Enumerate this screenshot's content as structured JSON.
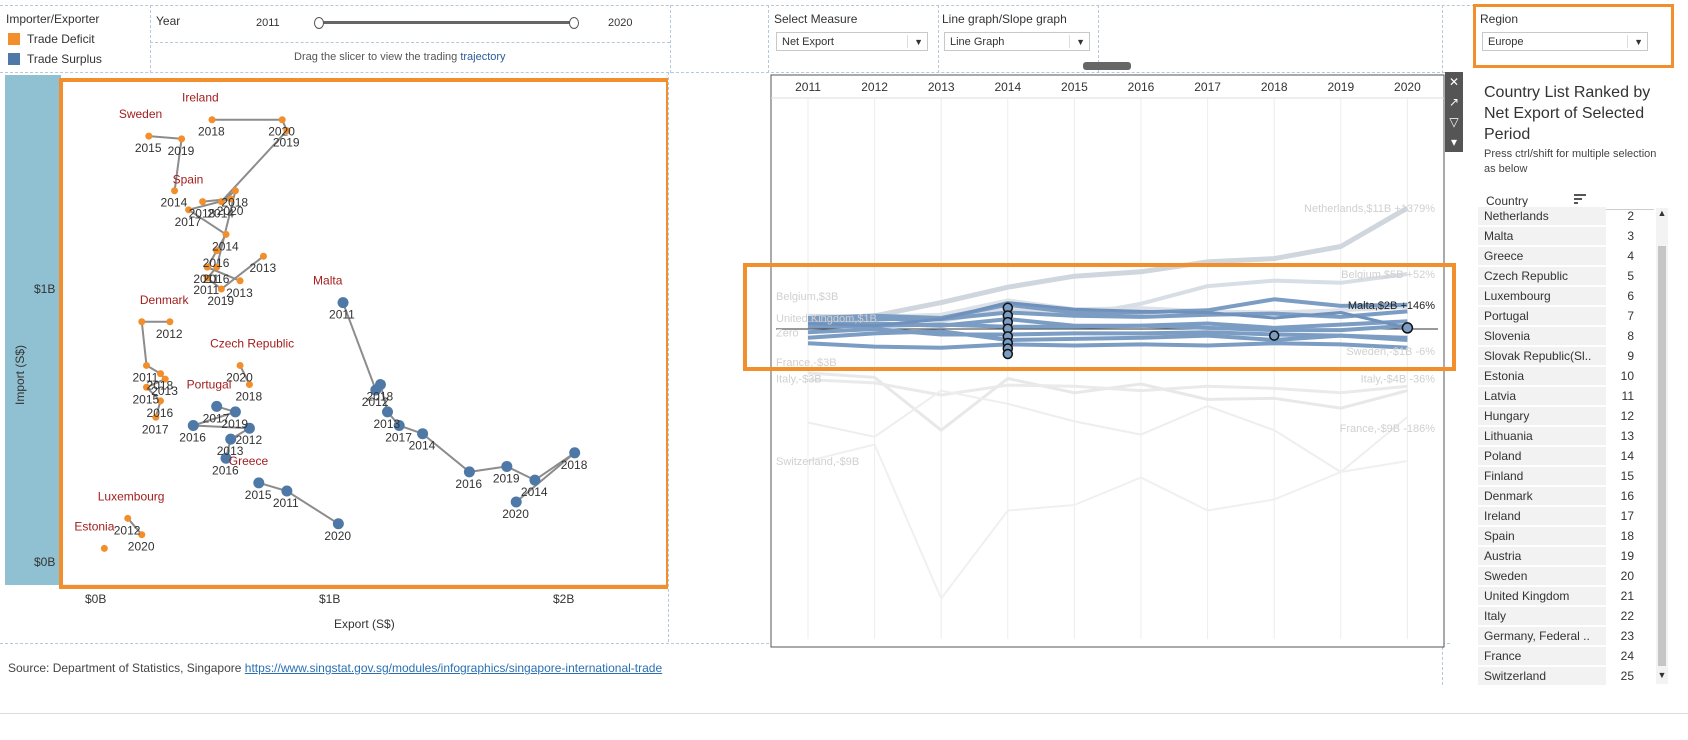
{
  "legend": {
    "title": "Importer/Exporter",
    "items": [
      {
        "label": "Trade Deficit",
        "color": "#f28e2b"
      },
      {
        "label": "Trade Surplus",
        "color": "#4e79a7"
      }
    ]
  },
  "year_filter": {
    "label": "Year",
    "min": "2011",
    "max": "2020",
    "start": 2011,
    "end": 2020,
    "hint_prefix": "Drag the slicer to view the trading ",
    "hint_link": "trajectory"
  },
  "measure": {
    "label": "Select Measure",
    "value": "Net Export"
  },
  "graph_type": {
    "label": "Line graph/Slope graph",
    "value": "Line Graph"
  },
  "region": {
    "label": "Region",
    "value": "Europe"
  },
  "scatter": {
    "y_title": "Import (S$)",
    "x_title": "Export (S$)",
    "y_ticks": [
      {
        "v": 0,
        "label": "$0B"
      },
      {
        "v": 1,
        "label": "$1B"
      }
    ],
    "x_ticks": [
      {
        "v": 0,
        "label": "$0B"
      },
      {
        "v": 1,
        "label": "$1B"
      },
      {
        "v": 2,
        "label": "$2B"
      }
    ],
    "countries": [
      {
        "name": "Ireland",
        "color": "#f28e2b",
        "points": [
          [
            0.5,
            1.62,
            "2018"
          ],
          [
            0.8,
            1.62,
            "2020"
          ],
          [
            0.82,
            1.58,
            "2019"
          ],
          [
            0.54,
            1.32,
            "2014"
          ],
          [
            0.6,
            1.36,
            "2018"
          ],
          [
            0.52,
            1.08,
            "2016"
          ],
          [
            0.48,
            1.04,
            "2011"
          ],
          [
            0.54,
            1.0,
            "2019"
          ],
          [
            0.72,
            1.12,
            "2013"
          ]
        ]
      },
      {
        "name": "Sweden",
        "color": "#f28e2b",
        "points": [
          [
            0.23,
            1.56,
            "2015"
          ],
          [
            0.37,
            1.55,
            "2019"
          ],
          [
            0.34,
            1.36,
            "2014"
          ]
        ]
      },
      {
        "name": "Spain",
        "color": "#f28e2b",
        "points": [
          [
            0.46,
            1.32,
            "2018"
          ],
          [
            0.58,
            1.33,
            "2020"
          ],
          [
            0.4,
            1.29,
            "2017"
          ],
          [
            0.56,
            1.2,
            "2014"
          ],
          [
            0.52,
            1.14,
            "2016"
          ],
          [
            0.48,
            1.08,
            "2011"
          ],
          [
            0.62,
            1.03,
            "2013"
          ]
        ]
      },
      {
        "name": "Denmark",
        "color": "#f28e2b",
        "points": [
          [
            0.32,
            0.88,
            "2012"
          ],
          [
            0.2,
            0.88,
            ""
          ],
          [
            0.22,
            0.72,
            "2011"
          ],
          [
            0.28,
            0.69,
            "2018"
          ],
          [
            0.3,
            0.67,
            "2013"
          ],
          [
            0.22,
            0.64,
            "2015"
          ],
          [
            0.28,
            0.59,
            "2016"
          ],
          [
            0.26,
            0.53,
            "2017"
          ]
        ]
      },
      {
        "name": "Czech Republic",
        "color": "#f28e2b",
        "points": [
          [
            0.62,
            0.72,
            "2020"
          ],
          [
            0.66,
            0.65,
            "2018"
          ]
        ]
      },
      {
        "name": "Portugal",
        "color": "#4e79a7",
        "points": [
          [
            0.52,
            0.57,
            "2017"
          ],
          [
            0.6,
            0.55,
            "2019"
          ],
          [
            0.42,
            0.5,
            "2016"
          ],
          [
            0.66,
            0.49,
            "2012"
          ],
          [
            0.58,
            0.45,
            "2013"
          ],
          [
            0.56,
            0.38,
            "2016"
          ]
        ]
      },
      {
        "name": "Luxembourg",
        "color": "#f28e2b",
        "points": [
          [
            0.14,
            0.16,
            "2012"
          ],
          [
            0.2,
            0.1,
            "2020"
          ]
        ]
      },
      {
        "name": "Estonia",
        "color": "#f28e2b",
        "points": [
          [
            0.04,
            0.05,
            ""
          ]
        ]
      },
      {
        "name": "Greece",
        "color": "#4e79a7",
        "points": [
          [
            0.7,
            0.29,
            "2015"
          ],
          [
            0.82,
            0.26,
            "2011"
          ],
          [
            1.04,
            0.14,
            "2020"
          ]
        ]
      },
      {
        "name": "Malta",
        "color": "#4e79a7",
        "points": [
          [
            1.06,
            0.95,
            "2011"
          ],
          [
            1.2,
            0.63,
            "2012"
          ],
          [
            1.22,
            0.65,
            "2018"
          ],
          [
            1.25,
            0.55,
            "2013"
          ],
          [
            1.3,
            0.5,
            "2017"
          ],
          [
            1.4,
            0.47,
            "2014"
          ],
          [
            1.6,
            0.33,
            "2016"
          ],
          [
            1.76,
            0.35,
            "2019"
          ],
          [
            1.88,
            0.3,
            "2014"
          ],
          [
            2.05,
            0.4,
            "2018"
          ],
          [
            1.8,
            0.22,
            "2020"
          ]
        ]
      }
    ]
  },
  "line_chart": {
    "years": [
      "2011",
      "2012",
      "2013",
      "2014",
      "2015",
      "2016",
      "2017",
      "2018",
      "2019",
      "2020"
    ],
    "labels": [
      {
        "text": "Netherlands,$11B +1379%",
        "x": 2020,
        "y": 11,
        "side": "end"
      },
      {
        "text": "Belgium,$5B +52%",
        "x": 2020,
        "y": 5,
        "side": "end"
      },
      {
        "text": "Belgium,$3B",
        "x": 2011,
        "y": 3,
        "side": "start"
      },
      {
        "text": "United Kingdom,$1B",
        "x": 2011,
        "y": 1,
        "side": "start"
      },
      {
        "text": "France,-$3B",
        "x": 2011,
        "y": -3,
        "side": "start"
      },
      {
        "text": "Italy,-$3B",
        "x": 2011,
        "y": -4.5,
        "side": "start"
      },
      {
        "text": "Italy,-$4B -36%",
        "x": 2020,
        "y": -4.5,
        "side": "end"
      },
      {
        "text": "France,-$9B -186%",
        "x": 2020,
        "y": -9,
        "side": "end"
      },
      {
        "text": "Switzerland,-$9B",
        "x": 2011,
        "y": -12,
        "side": "start"
      },
      {
        "text": "Malta,$2B +146%",
        "x": 2020,
        "y": 2.2,
        "side": "end"
      },
      {
        "text": "Sweden,-$1B -6%",
        "x": 2020,
        "y": -2,
        "side": "end"
      },
      {
        "text": "Zero",
        "x": 2011,
        "y": -0.3,
        "side": "start"
      }
    ]
  },
  "country_list": {
    "title": "Country List Ranked by Net Export of Selected Period",
    "hint": "Press ctrl/shift for multiple selection as below",
    "column": "Country",
    "rows": [
      {
        "name": "Netherlands",
        "rank": "2"
      },
      {
        "name": "Malta",
        "rank": "3"
      },
      {
        "name": "Greece",
        "rank": "4"
      },
      {
        "name": "Czech Republic",
        "rank": "5"
      },
      {
        "name": "Luxembourg",
        "rank": "6"
      },
      {
        "name": "Portugal",
        "rank": "7"
      },
      {
        "name": "Slovenia",
        "rank": "8"
      },
      {
        "name": "Slovak Republic(Sl..",
        "rank": "9"
      },
      {
        "name": "Estonia",
        "rank": "10"
      },
      {
        "name": "Latvia",
        "rank": "11"
      },
      {
        "name": "Hungary",
        "rank": "12"
      },
      {
        "name": "Lithuania",
        "rank": "13"
      },
      {
        "name": "Poland",
        "rank": "14"
      },
      {
        "name": "Finland",
        "rank": "15"
      },
      {
        "name": "Denmark",
        "rank": "16"
      },
      {
        "name": "Ireland",
        "rank": "17"
      },
      {
        "name": "Spain",
        "rank": "18"
      },
      {
        "name": "Austria",
        "rank": "19"
      },
      {
        "name": "Sweden",
        "rank": "20"
      },
      {
        "name": "United Kingdom",
        "rank": "21"
      },
      {
        "name": "Italy",
        "rank": "22"
      },
      {
        "name": "Germany, Federal ..",
        "rank": "23"
      },
      {
        "name": "France",
        "rank": "24"
      },
      {
        "name": "Switzerland",
        "rank": "25"
      }
    ]
  },
  "source": {
    "prefix": "Source: Department of Statistics, Singapore ",
    "link": "https://www.singstat.gov.sg/modules/infographics/singapore-international-trade"
  }
}
